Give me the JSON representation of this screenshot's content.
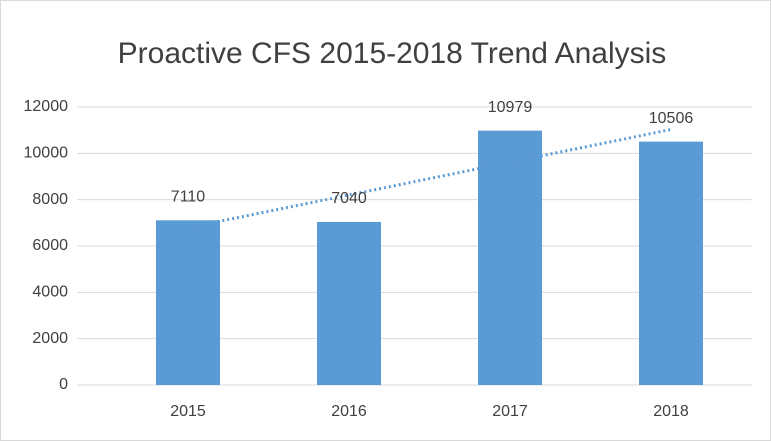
{
  "chart_data": {
    "type": "bar",
    "title": "Proactive CFS 2015-2018 Trend Analysis",
    "categories": [
      "2015",
      "2016",
      "2017",
      "2018"
    ],
    "values": [
      7110,
      7040,
      10979,
      10506
    ],
    "color": "#5b9bd5",
    "trendline": "linear",
    "trendline_color": "#5b9bd5",
    "ylim": [
      0,
      12000
    ],
    "yticks": [
      0,
      2000,
      4000,
      6000,
      8000,
      10000,
      12000
    ],
    "grid": true
  }
}
